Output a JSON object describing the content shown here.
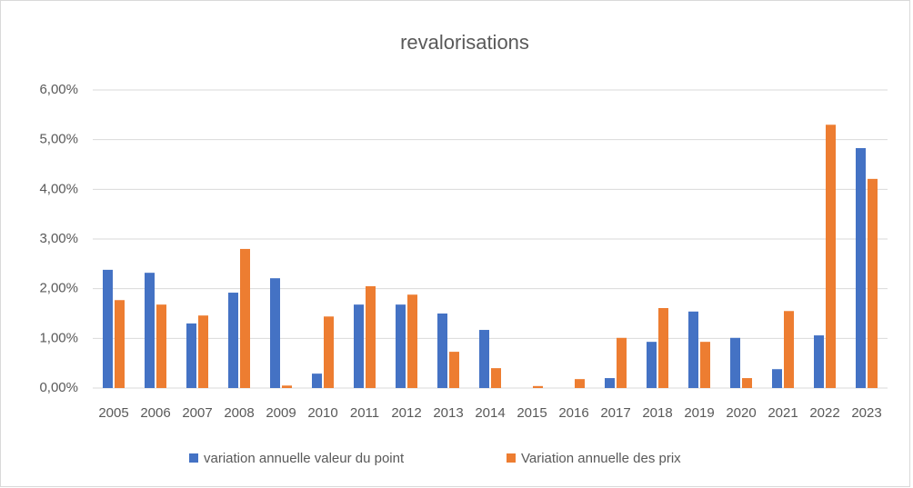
{
  "chart_data": {
    "type": "bar",
    "title": "revalorisations",
    "categories": [
      "2005",
      "2006",
      "2007",
      "2008",
      "2009",
      "2010",
      "2011",
      "2012",
      "2013",
      "2014",
      "2015",
      "2016",
      "2017",
      "2018",
      "2019",
      "2020",
      "2021",
      "2022",
      "2023"
    ],
    "series": [
      {
        "name": "variation annuelle valeur du point",
        "color": "#4472c4",
        "values": [
          2.38,
          2.32,
          1.3,
          1.92,
          2.21,
          0.29,
          1.68,
          1.68,
          1.5,
          1.17,
          0,
          0,
          0.2,
          0.93,
          1.54,
          1.01,
          0.38,
          1.06,
          4.83
        ]
      },
      {
        "name": "Variation annuelle des prix",
        "color": "#ed7d31",
        "values": [
          1.77,
          1.68,
          1.46,
          2.8,
          0.05,
          1.44,
          2.05,
          1.88,
          0.73,
          0.4,
          0.04,
          0.18,
          1.01,
          1.61,
          0.93,
          0.2,
          1.55,
          5.3,
          4.21
        ]
      }
    ],
    "ylim": [
      0,
      6
    ],
    "yticks": [
      {
        "value": 0,
        "label": "0,00%"
      },
      {
        "value": 1,
        "label": "1,00%"
      },
      {
        "value": 2,
        "label": "2,00%"
      },
      {
        "value": 3,
        "label": "3,00%"
      },
      {
        "value": 4,
        "label": "4,00%"
      },
      {
        "value": 5,
        "label": "5,00%"
      },
      {
        "value": 6,
        "label": "6,00%"
      }
    ],
    "grid": true,
    "legend": "bottom"
  }
}
